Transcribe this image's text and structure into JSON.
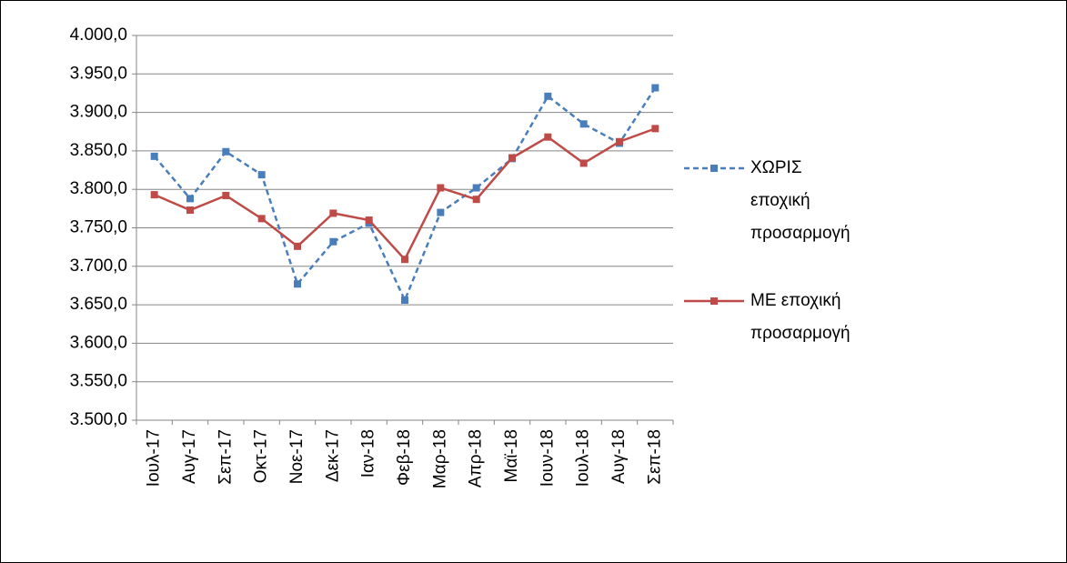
{
  "chart_data": {
    "type": "line",
    "categories": [
      "Ιουλ-17",
      "Αυγ-17",
      "Σεπ-17",
      "Οκτ-17",
      "Νοε-17",
      "Δεκ-17",
      "Ιαν-18",
      "Φεβ-18",
      "Μαρ-18",
      "Απρ-18",
      "Μαϊ-18",
      "Ιουν-18",
      "Ιουλ-18",
      "Αυγ-18",
      "Σεπ-18"
    ],
    "series": [
      {
        "name": "ΧΩΡΙΣ εποχική προσαρμογή",
        "color": "#4a7ebb",
        "dashed": true,
        "values": [
          3843,
          3788,
          3849,
          3819,
          3677,
          3732,
          3756,
          3656,
          3770,
          3802,
          3840,
          3921,
          3885,
          3860,
          3932
        ]
      },
      {
        "name": "ΜΕ εποχική προσαρμογή",
        "color": "#be4b48",
        "dashed": false,
        "values": [
          3793,
          3773,
          3792,
          3762,
          3726,
          3769,
          3760,
          3709,
          3802,
          3787,
          3841,
          3868,
          3834,
          3862,
          3879
        ]
      }
    ],
    "ylim": [
      3500,
      4000
    ],
    "yticks": [
      {
        "value": 3500,
        "label": "3.500,0"
      },
      {
        "value": 3550,
        "label": "3.550,0"
      },
      {
        "value": 3600,
        "label": "3.600,0"
      },
      {
        "value": 3650,
        "label": "3.650,0"
      },
      {
        "value": 3700,
        "label": "3.700,0"
      },
      {
        "value": 3750,
        "label": "3.750,0"
      },
      {
        "value": 3800,
        "label": "3.800,0"
      },
      {
        "value": 3850,
        "label": "3.850,0"
      },
      {
        "value": 3900,
        "label": "3.900,0"
      },
      {
        "value": 3950,
        "label": "3.950,0"
      },
      {
        "value": 4000,
        "label": "4.000,0"
      }
    ],
    "grid": true
  }
}
